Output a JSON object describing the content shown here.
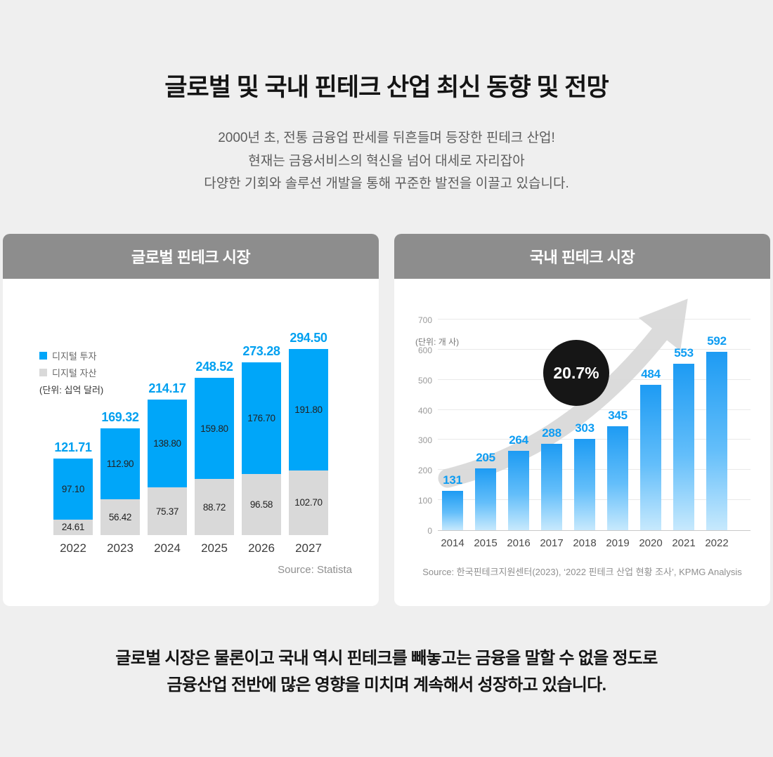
{
  "header": {
    "title": "글로벌 및 국내 핀테크 산업 최신 동향 및 전망",
    "intro_lines": [
      "2000년 초, 전통 금융업 판세를 뒤흔들며 등장한 핀테크 산업!",
      "현재는 금융서비스의 혁신을 넘어 대세로 자리잡아",
      "다양한 기회와 솔루션 개발을 통해 꾸준한 발전을 이끌고 있습니다."
    ]
  },
  "footer": {
    "lines": [
      "글로벌 시장은 물론이고 국내 역시 핀테크를 빼놓고는 금융을 말할 수 없을 정도로",
      "금융산업 전반에 많은 영향을 미치며 계속해서 성장하고 있습니다."
    ]
  },
  "colors": {
    "accent_blue": "#00a6f9",
    "bar_gray": "#d9d9d9",
    "card_header_gray": "#8d8d8d",
    "badge_black": "#161616",
    "arrow_gray": "#dadada",
    "background": "#efefef"
  },
  "chart_data": [
    {
      "type": "bar",
      "subtype": "stacked",
      "title": "글로벌 핀테크 시장",
      "unit_label": "(단위: 십억 달러)",
      "categories": [
        "2022",
        "2023",
        "2024",
        "2025",
        "2026",
        "2027"
      ],
      "series": [
        {
          "name": "디지털 투자",
          "color": "#00a6f9",
          "values": [
            97.1,
            112.9,
            138.8,
            159.8,
            176.7,
            191.8
          ]
        },
        {
          "name": "디지털 자산",
          "color": "#d9d9d9",
          "values": [
            24.61,
            56.42,
            75.37,
            88.72,
            96.58,
            102.7
          ]
        }
      ],
      "totals": [
        "121.71",
        "169.32",
        "214.17",
        "248.52",
        "273.28",
        "294.50"
      ],
      "legend_position": "top-left",
      "grid": false,
      "source": "Source: Statista"
    },
    {
      "type": "bar",
      "title": "국내 핀테크 시장",
      "unit_label": "(단위: 개 사)",
      "categories": [
        "2014",
        "2015",
        "2016",
        "2017",
        "2018",
        "2019",
        "2020",
        "2021",
        "2022"
      ],
      "values": [
        131,
        205,
        264,
        288,
        303,
        345,
        484,
        553,
        592
      ],
      "ylim": [
        0,
        700
      ],
      "ytick_interval": 100,
      "grid": true,
      "growth_badge": "20.7%",
      "source": "Source: 한국핀테크지원센터(2023), ‘2022 핀테크 산업 현황 조사’, KPMG Analysis"
    }
  ]
}
